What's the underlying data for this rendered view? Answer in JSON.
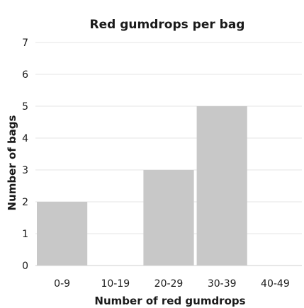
{
  "chart_data": {
    "type": "bar",
    "title": "Red gumdrops per bag",
    "xlabel": "Number of red gumdrops",
    "ylabel": "Number of bags",
    "categories": [
      "0-9",
      "10-19",
      "20-29",
      "30-39",
      "40-49"
    ],
    "values": [
      2,
      0,
      3,
      5,
      0
    ],
    "ylim": [
      0,
      7
    ],
    "yticks": [
      "0",
      "1",
      "2",
      "3",
      "4",
      "5",
      "6",
      "7"
    ],
    "grid": true,
    "bar_color": "#c8c8c8",
    "legend": "none"
  }
}
